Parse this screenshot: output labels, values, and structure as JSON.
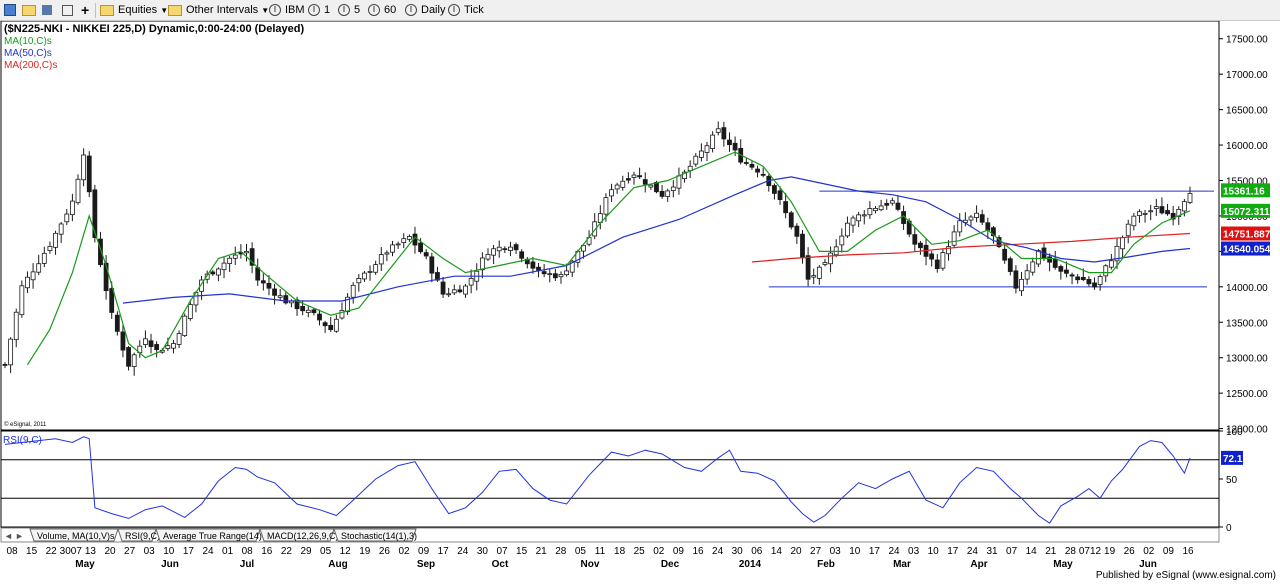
{
  "toolbar": {
    "equities": "Equities",
    "other_intervals": "Other Intervals",
    "symbol": "IBM",
    "btn_1": "1",
    "btn_5": "5",
    "btn_60": "60",
    "daily": "Daily",
    "tick": "Tick"
  },
  "chart_title": "($N225-NKI - NIKKEI 225,D) Dynamic,0:00-24:00 (Delayed)",
  "legend": {
    "ma10": "MA(10,C)s",
    "ma50": "MA(50,C)s",
    "ma200": "MA(200,C)s"
  },
  "watermark": "© eSignal, 2011",
  "rsi_label": "RSI(9,C)",
  "rsi_value": "72.1",
  "price_labels": {
    "last": "15361.16",
    "ma10": "15072.311",
    "ma200": "14751.8871",
    "ma50": "14540.054"
  },
  "study_tabs": [
    "Volume, MA(10,V)s",
    "RSI(9,C)",
    "Average True Range(14)",
    "MACD(12,26,9,C)",
    "Stochastic(14(1),3)"
  ],
  "footer": "Published by eSignal (www.esignal.com)",
  "colors": {
    "ma10": "#1a9a1a",
    "ma50": "#2233cc",
    "ma200": "#dd2222",
    "rsi": "#2233dd",
    "candles": "#1a1a1a"
  },
  "chart_data": {
    "type": "candlestick",
    "y_ticks": [
      "17500.00",
      "17000.00",
      "16500.00",
      "16000.00",
      "15500.00",
      "15000.00",
      "14500.00",
      "14000.00",
      "13500.00",
      "13000.00",
      "12500.00",
      "12000.00"
    ],
    "ylim": [
      11980,
      17750
    ],
    "rsi_ticks": [
      "100",
      "50",
      "0"
    ],
    "rsi_levels": [
      70,
      30
    ],
    "day_labels": [
      "08",
      "15",
      "22",
      "3007",
      "13",
      "20",
      "27",
      "03",
      "10",
      "17",
      "24",
      "01",
      "08",
      "16",
      "22",
      "29",
      "05",
      "12",
      "19",
      "26",
      "02",
      "09",
      "17",
      "24",
      "30",
      "07",
      "15",
      "21",
      "28",
      "05",
      "11",
      "18",
      "25",
      "02",
      "09",
      "16",
      "24",
      "30",
      "06",
      "14",
      "20",
      "27",
      "03",
      "10",
      "17",
      "24",
      "03",
      "10",
      "17",
      "24",
      "31",
      "07",
      "14",
      "21",
      "28",
      "0712",
      "19",
      "26",
      "02",
      "09",
      "16"
    ],
    "month_labels": [
      "May",
      "Jun",
      "Jul",
      "Aug",
      "Sep",
      "Oct",
      "Nov",
      "Dec",
      "2014",
      "Feb",
      "Mar",
      "Apr",
      "May",
      "Jun"
    ],
    "horizontal_lines": [
      15350,
      14000
    ],
    "price_path": [
      [
        0,
        12900
      ],
      [
        3,
        14000
      ],
      [
        8,
        14600
      ],
      [
        12,
        15200
      ],
      [
        14,
        15900
      ],
      [
        16,
        14700
      ],
      [
        19,
        13600
      ],
      [
        22,
        12900
      ],
      [
        25,
        13300
      ],
      [
        27,
        13100
      ],
      [
        30,
        13200
      ],
      [
        35,
        14100
      ],
      [
        40,
        14400
      ],
      [
        43,
        14500
      ],
      [
        45,
        14100
      ],
      [
        50,
        13800
      ],
      [
        55,
        13600
      ],
      [
        58,
        13400
      ],
      [
        62,
        14000
      ],
      [
        68,
        14500
      ],
      [
        72,
        14700
      ],
      [
        75,
        14400
      ],
      [
        78,
        13900
      ],
      [
        82,
        14000
      ],
      [
        86,
        14500
      ],
      [
        90,
        14600
      ],
      [
        95,
        14200
      ],
      [
        99,
        14150
      ],
      [
        104,
        14700
      ],
      [
        108,
        15400
      ],
      [
        112,
        15600
      ],
      [
        117,
        15300
      ],
      [
        121,
        15600
      ],
      [
        125,
        16000
      ],
      [
        127,
        16200
      ],
      [
        131,
        15800
      ],
      [
        135,
        15600
      ],
      [
        138,
        15200
      ],
      [
        141,
        14700
      ],
      [
        143,
        14100
      ],
      [
        146,
        14300
      ],
      [
        150,
        14900
      ],
      [
        154,
        15100
      ],
      [
        158,
        15200
      ],
      [
        162,
        14600
      ],
      [
        166,
        14300
      ],
      [
        170,
        14900
      ],
      [
        173,
        15000
      ],
      [
        176,
        14700
      ],
      [
        180,
        14000
      ],
      [
        184,
        14500
      ],
      [
        188,
        14200
      ],
      [
        192,
        14100
      ],
      [
        194,
        14000
      ],
      [
        197,
        14400
      ],
      [
        201,
        15000
      ],
      [
        205,
        15100
      ],
      [
        208,
        15000
      ],
      [
        211,
        15361
      ]
    ],
    "ma10_path": [
      [
        4,
        12900
      ],
      [
        8,
        13400
      ],
      [
        12,
        14200
      ],
      [
        15,
        15000
      ],
      [
        18,
        14300
      ],
      [
        22,
        13200
      ],
      [
        25,
        13000
      ],
      [
        28,
        13100
      ],
      [
        33,
        13800
      ],
      [
        38,
        14400
      ],
      [
        42,
        14500
      ],
      [
        46,
        14200
      ],
      [
        52,
        13800
      ],
      [
        58,
        13600
      ],
      [
        63,
        13700
      ],
      [
        68,
        14200
      ],
      [
        73,
        14700
      ],
      [
        78,
        14400
      ],
      [
        82,
        14200
      ],
      [
        88,
        14300
      ],
      [
        94,
        14400
      ],
      [
        100,
        14300
      ],
      [
        106,
        14900
      ],
      [
        112,
        15400
      ],
      [
        118,
        15500
      ],
      [
        124,
        15700
      ],
      [
        130,
        15900
      ],
      [
        135,
        15700
      ],
      [
        140,
        15200
      ],
      [
        145,
        14500
      ],
      [
        150,
        14500
      ],
      [
        155,
        14800
      ],
      [
        160,
        15000
      ],
      [
        165,
        14600
      ],
      [
        170,
        14650
      ],
      [
        175,
        14800
      ],
      [
        181,
        14400
      ],
      [
        187,
        14400
      ],
      [
        193,
        14200
      ],
      [
        197,
        14200
      ],
      [
        201,
        14600
      ],
      [
        206,
        14900
      ],
      [
        211,
        15072
      ]
    ],
    "ma50_path": [
      [
        21,
        13770
      ],
      [
        30,
        13850
      ],
      [
        40,
        13900
      ],
      [
        50,
        13800
      ],
      [
        60,
        13800
      ],
      [
        70,
        14000
      ],
      [
        80,
        14150
      ],
      [
        90,
        14150
      ],
      [
        100,
        14300
      ],
      [
        110,
        14700
      ],
      [
        120,
        14950
      ],
      [
        130,
        15300
      ],
      [
        136,
        15500
      ],
      [
        140,
        15550
      ],
      [
        146,
        15450
      ],
      [
        152,
        15350
      ],
      [
        158,
        15300
      ],
      [
        164,
        15200
      ],
      [
        170,
        14950
      ],
      [
        176,
        14650
      ],
      [
        182,
        14550
      ],
      [
        188,
        14400
      ],
      [
        194,
        14350
      ],
      [
        200,
        14420
      ],
      [
        206,
        14500
      ],
      [
        211,
        14540
      ]
    ],
    "ma200_path": [
      [
        133,
        14350
      ],
      [
        140,
        14400
      ],
      [
        150,
        14450
      ],
      [
        160,
        14480
      ],
      [
        170,
        14560
      ],
      [
        180,
        14600
      ],
      [
        190,
        14640
      ],
      [
        200,
        14700
      ],
      [
        211,
        14752
      ]
    ],
    "rsi_path": [
      [
        0,
        86
      ],
      [
        3,
        88
      ],
      [
        6,
        90
      ],
      [
        9,
        92
      ],
      [
        12,
        88
      ],
      [
        14,
        94
      ],
      [
        15,
        92
      ],
      [
        16,
        20
      ],
      [
        19,
        14
      ],
      [
        22,
        9
      ],
      [
        25,
        18
      ],
      [
        28,
        22
      ],
      [
        32,
        10
      ],
      [
        35,
        24
      ],
      [
        38,
        48
      ],
      [
        41,
        62
      ],
      [
        43,
        60
      ],
      [
        45,
        52
      ],
      [
        48,
        46
      ],
      [
        52,
        24
      ],
      [
        56,
        18
      ],
      [
        59,
        12
      ],
      [
        62,
        28
      ],
      [
        66,
        50
      ],
      [
        70,
        64
      ],
      [
        73,
        68
      ],
      [
        76,
        40
      ],
      [
        79,
        14
      ],
      [
        82,
        20
      ],
      [
        85,
        36
      ],
      [
        88,
        58
      ],
      [
        91,
        60
      ],
      [
        94,
        40
      ],
      [
        97,
        28
      ],
      [
        100,
        24
      ],
      [
        104,
        54
      ],
      [
        108,
        78
      ],
      [
        111,
        74
      ],
      [
        114,
        80
      ],
      [
        117,
        76
      ],
      [
        121,
        62
      ],
      [
        124,
        58
      ],
      [
        127,
        72
      ],
      [
        129,
        80
      ],
      [
        131,
        58
      ],
      [
        134,
        56
      ],
      [
        137,
        48
      ],
      [
        140,
        26
      ],
      [
        142,
        14
      ],
      [
        144,
        5
      ],
      [
        146,
        12
      ],
      [
        149,
        30
      ],
      [
        152,
        46
      ],
      [
        155,
        40
      ],
      [
        158,
        50
      ],
      [
        161,
        58
      ],
      [
        164,
        28
      ],
      [
        167,
        20
      ],
      [
        170,
        46
      ],
      [
        173,
        62
      ],
      [
        176,
        58
      ],
      [
        179,
        40
      ],
      [
        181,
        30
      ],
      [
        184,
        12
      ],
      [
        186,
        4
      ],
      [
        188,
        22
      ],
      [
        191,
        32
      ],
      [
        193,
        40
      ],
      [
        195,
        30
      ],
      [
        197,
        48
      ],
      [
        199,
        60
      ],
      [
        202,
        84
      ],
      [
        204,
        90
      ],
      [
        206,
        88
      ],
      [
        208,
        74
      ],
      [
        210,
        56
      ],
      [
        211,
        72
      ]
    ]
  }
}
